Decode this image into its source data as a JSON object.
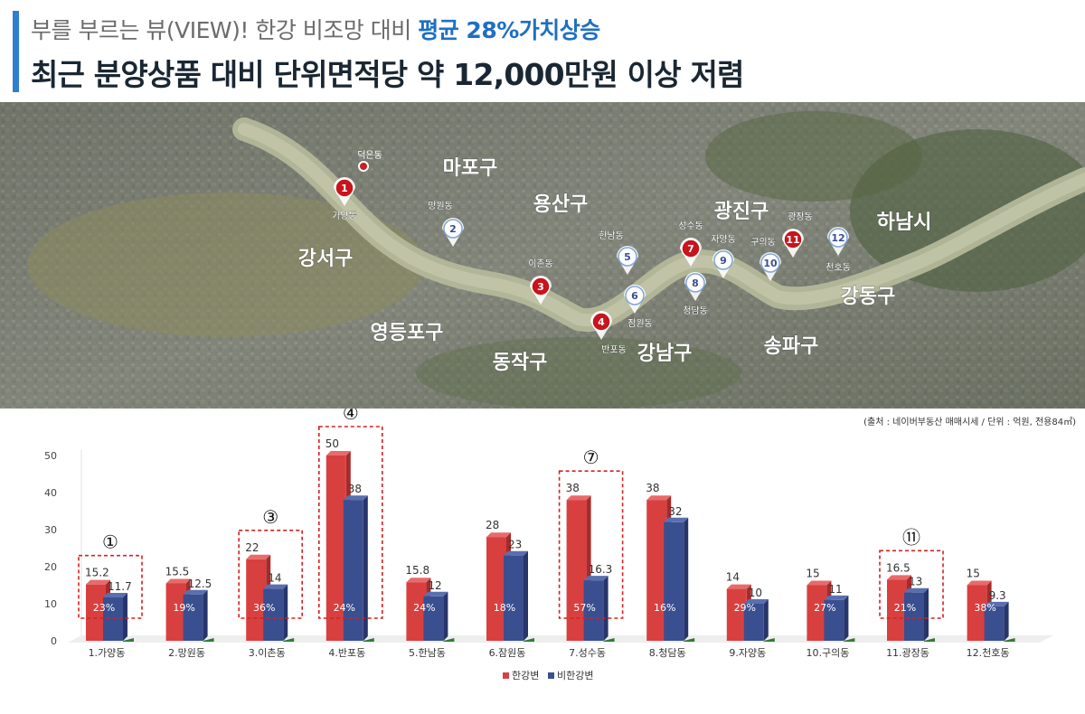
{
  "header": {
    "subtitle_prefix": "부를 부르는 뷰(VIEW)! 한강 비조망 대비",
    "subtitle_highlight": "평균 28%가치상승",
    "title": "최근 분양상품 대비 단위면적당 약 12,000만원 이상 저렴"
  },
  "map": {
    "districts": [
      "마포구",
      "용산구",
      "광진구",
      "하남시",
      "강서구",
      "영등포구",
      "동작구",
      "강남구",
      "송파구",
      "강동구"
    ],
    "markers": [
      {
        "num": "1",
        "label": "가양동",
        "style": "red"
      },
      {
        "num": "2",
        "label": "망원동",
        "style": "white"
      },
      {
        "num": "3",
        "label": "이촌동",
        "style": "red"
      },
      {
        "num": "4",
        "label": "반포동",
        "style": "red"
      },
      {
        "num": "5",
        "label": "한남동",
        "style": "white"
      },
      {
        "num": "6",
        "label": "잠원동",
        "style": "white"
      },
      {
        "num": "7",
        "label": "성수동",
        "style": "red"
      },
      {
        "num": "8",
        "label": "청담동",
        "style": "white"
      },
      {
        "num": "9",
        "label": "자양동",
        "style": "white"
      },
      {
        "num": "10",
        "label": "구의동",
        "style": "white"
      },
      {
        "num": "11",
        "label": "광장동",
        "style": "red"
      },
      {
        "num": "12",
        "label": "천호동",
        "style": "white"
      }
    ],
    "dot_label": "덕은동"
  },
  "source_note": "(출처 : 네이버부동산 매매시세 / 단위 : 억원, 전용84㎡)",
  "colors": {
    "river_view": "#d84040",
    "non_river_view": "#3a4f8f",
    "accent": "#2f7fd1",
    "highlight_box": "#d62020"
  },
  "chart_data": {
    "type": "bar",
    "title": "",
    "xlabel": "",
    "ylabel": "",
    "ylim": [
      0,
      50
    ],
    "yticks": [
      0,
      10,
      20,
      30,
      40,
      50
    ],
    "categories": [
      "1.가양동",
      "2.망원동",
      "3.이촌동",
      "4.반포동",
      "5.한남동",
      "6.잠원동",
      "7.성수동",
      "8.청담동",
      "9.자양동",
      "10.구의동",
      "11.광장동",
      "12.천호동"
    ],
    "series": [
      {
        "name": "한강변",
        "values": [
          15.2,
          15.5,
          22,
          50,
          15.8,
          28,
          38,
          38,
          14,
          15,
          16.5,
          15
        ]
      },
      {
        "name": "비한강변",
        "values": [
          11.7,
          12.5,
          14,
          38,
          12,
          23,
          16.3,
          32,
          10,
          11,
          13,
          9.3
        ]
      }
    ],
    "premium_labels": [
      "23%",
      "19%",
      "36%",
      "24%",
      "24%",
      "18%",
      "57%",
      "16%",
      "29%",
      "27%",
      "21%",
      "38%"
    ],
    "highlighted": [
      {
        "index": 0,
        "marker": "①"
      },
      {
        "index": 2,
        "marker": "③"
      },
      {
        "index": 3,
        "marker": "④"
      },
      {
        "index": 6,
        "marker": "⑦"
      },
      {
        "index": 10,
        "marker": "⑪"
      }
    ],
    "legend_position": "bottom",
    "grid": false
  }
}
